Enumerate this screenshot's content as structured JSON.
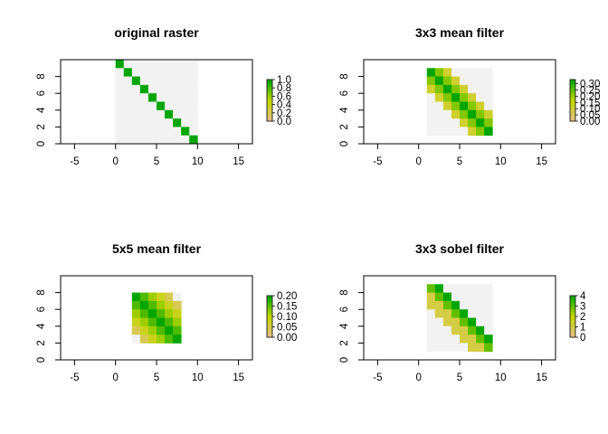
{
  "chart_data": [
    {
      "type": "heatmap",
      "title": "original raster",
      "xlim": [
        -6.7,
        16.7
      ],
      "ylim": [
        0,
        10
      ],
      "raster_extent": {
        "xmin": 0,
        "xmax": 10,
        "ymin": 0,
        "ymax": 10
      },
      "x_ticks": [
        "-5",
        "0",
        "5",
        "10",
        "15"
      ],
      "y_ticks": [
        "0",
        "2",
        "4",
        "6",
        "8"
      ],
      "legend_ticks": [
        "0.0",
        "0.2",
        "0.4",
        "0.6",
        "0.8",
        "1.0"
      ],
      "value_range": [
        0,
        1
      ],
      "values": [
        [
          1,
          0,
          0,
          0,
          0,
          0,
          0,
          0,
          0,
          0
        ],
        [
          0,
          1,
          0,
          0,
          0,
          0,
          0,
          0,
          0,
          0
        ],
        [
          0,
          0,
          1,
          0,
          0,
          0,
          0,
          0,
          0,
          0
        ],
        [
          0,
          0,
          0,
          1,
          0,
          0,
          0,
          0,
          0,
          0
        ],
        [
          0,
          0,
          0,
          0,
          1,
          0,
          0,
          0,
          0,
          0
        ],
        [
          0,
          0,
          0,
          0,
          0,
          1,
          0,
          0,
          0,
          0
        ],
        [
          0,
          0,
          0,
          0,
          0,
          0,
          1,
          0,
          0,
          0
        ],
        [
          0,
          0,
          0,
          0,
          0,
          0,
          0,
          1,
          0,
          0
        ],
        [
          0,
          0,
          0,
          0,
          0,
          0,
          0,
          0,
          1,
          0
        ],
        [
          0,
          0,
          0,
          0,
          0,
          0,
          0,
          0,
          0,
          1
        ]
      ]
    },
    {
      "type": "heatmap",
      "title": "3x3 mean filter",
      "xlim": [
        -6.7,
        16.7
      ],
      "ylim": [
        0,
        10
      ],
      "raster_extent": {
        "xmin": 0,
        "xmax": 10,
        "ymin": 0,
        "ymax": 10
      },
      "x_ticks": [
        "-5",
        "0",
        "5",
        "10",
        "15"
      ],
      "y_ticks": [
        "0",
        "2",
        "4",
        "6",
        "8"
      ],
      "legend_ticks": [
        "0.00",
        "0.05",
        "0.10",
        "0.15",
        "0.20",
        "0.25",
        "0.30"
      ],
      "value_range": [
        0,
        0.333
      ],
      "values": [
        [
          null,
          null,
          null,
          null,
          null,
          null,
          null,
          null,
          null,
          null
        ],
        [
          null,
          0.333,
          0.222,
          0.111,
          0,
          0,
          0,
          0,
          0,
          null
        ],
        [
          null,
          0.222,
          0.333,
          0.222,
          0.111,
          0,
          0,
          0,
          0,
          null
        ],
        [
          null,
          0.111,
          0.222,
          0.333,
          0.222,
          0.111,
          0,
          0,
          0,
          null
        ],
        [
          null,
          0,
          0.111,
          0.222,
          0.333,
          0.222,
          0.111,
          0,
          0,
          null
        ],
        [
          null,
          0,
          0,
          0.111,
          0.222,
          0.333,
          0.222,
          0.111,
          0,
          null
        ],
        [
          null,
          0,
          0,
          0,
          0.111,
          0.222,
          0.333,
          0.222,
          0.111,
          null
        ],
        [
          null,
          0,
          0,
          0,
          0,
          0.111,
          0.222,
          0.333,
          0.222,
          null
        ],
        [
          null,
          0,
          0,
          0,
          0,
          0,
          0.111,
          0.222,
          0.333,
          null
        ],
        [
          null,
          null,
          null,
          null,
          null,
          null,
          null,
          null,
          null,
          null
        ]
      ]
    },
    {
      "type": "heatmap",
      "title": "5x5 mean filter",
      "xlim": [
        -6.7,
        16.7
      ],
      "ylim": [
        0,
        10
      ],
      "raster_extent": {
        "xmin": 0,
        "xmax": 10,
        "ymin": 0,
        "ymax": 10
      },
      "x_ticks": [
        "-5",
        "0",
        "5",
        "10",
        "15"
      ],
      "y_ticks": [
        "0",
        "2",
        "4",
        "6",
        "8"
      ],
      "legend_ticks": [
        "0.00",
        "0.05",
        "0.10",
        "0.15",
        "0.20"
      ],
      "value_range": [
        0,
        0.2
      ],
      "values": [
        [
          null,
          null,
          null,
          null,
          null,
          null,
          null,
          null,
          null,
          null
        ],
        [
          null,
          null,
          null,
          null,
          null,
          null,
          null,
          null,
          null,
          null
        ],
        [
          null,
          null,
          0.2,
          0.16,
          0.12,
          0.08,
          0.04,
          0,
          null,
          null
        ],
        [
          null,
          null,
          0.16,
          0.2,
          0.16,
          0.12,
          0.08,
          0.04,
          null,
          null
        ],
        [
          null,
          null,
          0.12,
          0.16,
          0.2,
          0.16,
          0.12,
          0.08,
          null,
          null
        ],
        [
          null,
          null,
          0.08,
          0.12,
          0.16,
          0.2,
          0.16,
          0.12,
          null,
          null
        ],
        [
          null,
          null,
          0.04,
          0.08,
          0.12,
          0.16,
          0.2,
          0.16,
          null,
          null
        ],
        [
          null,
          null,
          0,
          0.04,
          0.08,
          0.12,
          0.16,
          0.2,
          null,
          null
        ],
        [
          null,
          null,
          null,
          null,
          null,
          null,
          null,
          null,
          null,
          null
        ],
        [
          null,
          null,
          null,
          null,
          null,
          null,
          null,
          null,
          null,
          null
        ]
      ]
    },
    {
      "type": "heatmap",
      "title": "3x3 sobel filter",
      "xlim": [
        -6.7,
        16.7
      ],
      "ylim": [
        0,
        10
      ],
      "raster_extent": {
        "xmin": 0,
        "xmax": 10,
        "ymin": 0,
        "ymax": 10
      },
      "x_ticks": [
        "-5",
        "0",
        "5",
        "10",
        "15"
      ],
      "y_ticks": [
        "0",
        "2",
        "4",
        "6",
        "8"
      ],
      "legend_ticks": [
        "0",
        "1",
        "2",
        "3",
        "4"
      ],
      "value_range": [
        0,
        4
      ],
      "values": [
        [
          null,
          null,
          null,
          null,
          null,
          null,
          null,
          null,
          null,
          null
        ],
        [
          null,
          3,
          4,
          0,
          0,
          0,
          0,
          0,
          0,
          null
        ],
        [
          null,
          1,
          3,
          4,
          0,
          0,
          0,
          0,
          0,
          null
        ],
        [
          null,
          1,
          1,
          3,
          4,
          0,
          0,
          0,
          0,
          null
        ],
        [
          null,
          0,
          1,
          1,
          3,
          4,
          0,
          0,
          0,
          null
        ],
        [
          null,
          0,
          0,
          1,
          1,
          3,
          4,
          0,
          0,
          null
        ],
        [
          null,
          0,
          0,
          0,
          1,
          1,
          3,
          4,
          0,
          null
        ],
        [
          null,
          0,
          0,
          0,
          0,
          1,
          1,
          3,
          4,
          null
        ],
        [
          null,
          0,
          0,
          0,
          0,
          0,
          1,
          1,
          3,
          null
        ],
        [
          null,
          null,
          null,
          null,
          null,
          null,
          null,
          null,
          null,
          null
        ]
      ]
    }
  ],
  "colors": {
    "zero": "#f2f2f2",
    "low": "#e6bf8a",
    "mid": "#c3d800",
    "high": "#00a600"
  }
}
